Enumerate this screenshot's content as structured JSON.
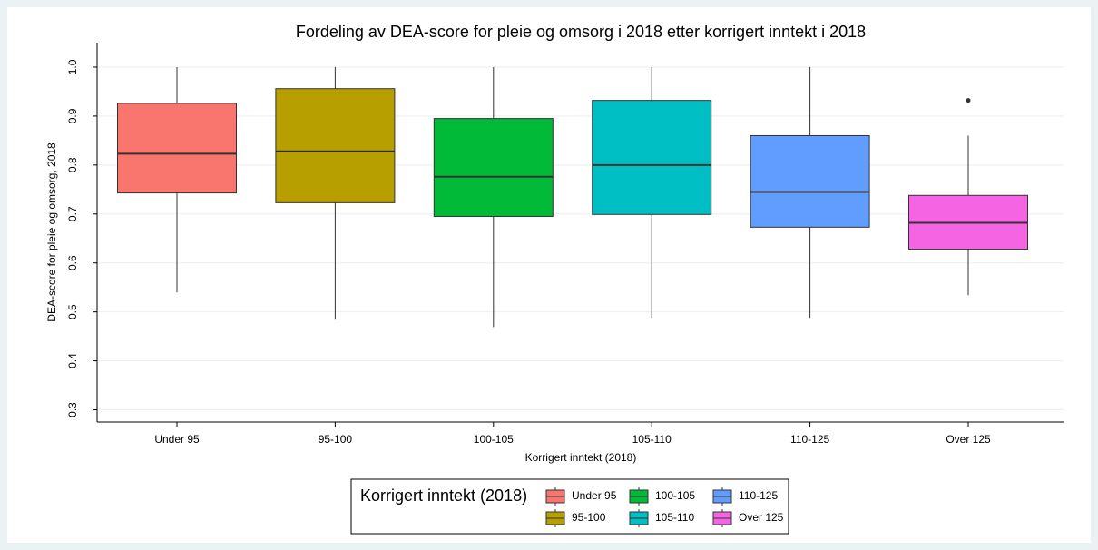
{
  "chart_data": {
    "type": "box",
    "title": "Fordeling av DEA-score for pleie og omsorg i 2018 etter korrigert inntekt i 2018",
    "x_label": "Korrigert inntekt (2018)",
    "y_label": "DEA-score for pleie og omsorg, 2018",
    "legend_title": "Korrigert inntekt (2018)",
    "categories": [
      "Under 95",
      "95-100",
      "100-105",
      "105-110",
      "110-125",
      "Over 125"
    ],
    "series": [
      {
        "name": "Under 95",
        "color": "#f8766d",
        "min": 0.54,
        "q1": 0.743,
        "median": 0.823,
        "q3": 0.926,
        "max": 1.0
      },
      {
        "name": "95-100",
        "color": "#b79f00",
        "min": 0.484,
        "q1": 0.723,
        "median": 0.828,
        "q3": 0.956,
        "max": 1.0
      },
      {
        "name": "100-105",
        "color": "#00ba38",
        "min": 0.469,
        "q1": 0.695,
        "median": 0.776,
        "q3": 0.895,
        "max": 1.0
      },
      {
        "name": "105-110",
        "color": "#00bfc4",
        "min": 0.488,
        "q1": 0.699,
        "median": 0.8,
        "q3": 0.932,
        "max": 1.0
      },
      {
        "name": "110-125",
        "color": "#619cff",
        "min": 0.488,
        "q1": 0.673,
        "median": 0.745,
        "q3": 0.86,
        "max": 1.0
      },
      {
        "name": "Over 125",
        "color": "#f564e3",
        "min": 0.534,
        "q1": 0.628,
        "median": 0.682,
        "q3": 0.738,
        "max": 0.86,
        "outliers": [
          0.932
        ]
      }
    ],
    "ylim": [
      0.275,
      1.05
    ],
    "yticks": [
      0.3,
      0.4,
      0.5,
      0.6,
      0.7,
      0.8,
      0.9,
      {
        "value": 1,
        "label": "1.0"
      }
    ],
    "grid": true
  }
}
